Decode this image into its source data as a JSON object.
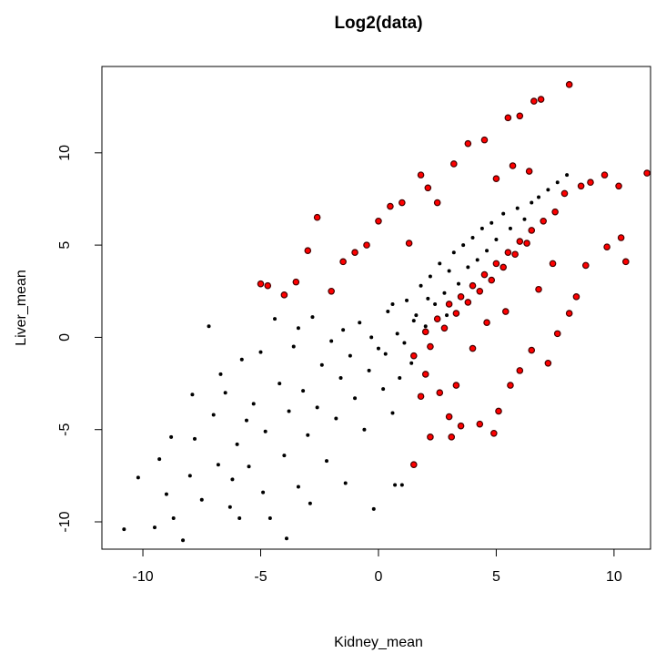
{
  "chart_data": {
    "type": "scatter",
    "title": "Log2(data)",
    "x_label": "Kidney_mean",
    "y_label": "Liver_mean",
    "xlim": [
      -11.74,
      11.55
    ],
    "ylim": [
      -11.48,
      14.68
    ],
    "xticks": [
      -10,
      -5,
      0,
      5,
      10
    ],
    "yticks": [
      -10,
      -5,
      0,
      5,
      10
    ],
    "series": [
      {
        "color": "#000000",
        "x": [
          -10.8,
          -10.2,
          -9.5,
          -9.3,
          -9.0,
          -8.7,
          -8.3,
          -8.0,
          -7.8,
          -7.5,
          -7.2,
          -7.0,
          -6.8,
          -6.5,
          -6.3,
          -6.0,
          -5.8,
          -5.5,
          -5.3,
          -5.0,
          -4.8,
          -4.6,
          -4.4,
          -4.2,
          -4.0,
          -3.8,
          -3.6,
          -3.4,
          -3.2,
          -3.0,
          -2.8,
          -2.6,
          -2.4,
          -2.2,
          -2.0,
          -1.8,
          -1.6,
          -1.4,
          -1.2,
          -1.0,
          -0.8,
          -0.6,
          -0.4,
          -0.2,
          0.0,
          0.2,
          0.4,
          0.6,
          0.8,
          1.0,
          1.2,
          1.4,
          1.6,
          1.8,
          2.0,
          2.2,
          2.4,
          2.6,
          2.8,
          3.0,
          3.2,
          3.4,
          3.6,
          3.8,
          4.0,
          4.2,
          4.4,
          4.6,
          4.8,
          5.0,
          5.3,
          5.6,
          5.9,
          6.2,
          6.5,
          6.8,
          7.2,
          7.6,
          8.0,
          -3.9,
          -5.6,
          -6.7,
          -7.9,
          -8.8,
          -2.9,
          -1.5,
          0.6,
          1.1,
          0.9,
          -0.3,
          0.3,
          1.5,
          2.1,
          2.9,
          0.7,
          -4.9,
          -6.2,
          -3.4,
          -5.9
        ],
        "y": [
          -10.4,
          -7.6,
          -10.3,
          -6.6,
          -8.5,
          -9.8,
          -11.0,
          -7.5,
          -5.5,
          -8.8,
          0.6,
          -4.2,
          -6.9,
          -3.0,
          -9.2,
          -5.8,
          -1.2,
          -7.0,
          -3.6,
          -0.8,
          -5.1,
          -9.8,
          1.0,
          -2.5,
          -6.4,
          -4.0,
          -0.5,
          -8.1,
          -2.9,
          -5.3,
          1.1,
          -3.8,
          -1.5,
          -6.7,
          -0.2,
          -4.4,
          -2.2,
          -7.9,
          -1.0,
          -3.3,
          0.8,
          -5.0,
          -1.8,
          -9.3,
          -0.6,
          -2.8,
          1.4,
          -4.1,
          0.2,
          -8.0,
          2.0,
          -1.4,
          1.2,
          2.8,
          0.6,
          3.3,
          1.8,
          4.0,
          2.4,
          3.6,
          4.6,
          2.9,
          5.0,
          3.8,
          5.4,
          4.2,
          5.9,
          4.7,
          6.2,
          5.3,
          6.7,
          5.9,
          7.0,
          6.4,
          7.3,
          7.6,
          8.0,
          8.4,
          8.8,
          -10.9,
          -4.5,
          -2.0,
          -3.1,
          -5.4,
          -9.0,
          0.4,
          1.8,
          -0.3,
          -2.2,
          0.0,
          -0.9,
          0.9,
          2.1,
          1.2,
          -8.0,
          -8.4,
          -7.7,
          0.5,
          -9.8
        ]
      },
      {
        "color": "#ff0000",
        "x": [
          1.5,
          2.0,
          2.5,
          3.0,
          3.5,
          4.0,
          4.5,
          5.0,
          5.5,
          6.0,
          6.5,
          7.0,
          7.5,
          2.2,
          2.8,
          3.3,
          3.8,
          4.3,
          4.8,
          5.3,
          5.8,
          6.3,
          -5.0,
          -4.7,
          -4.0,
          -3.5,
          -3.0,
          -2.6,
          -2.0,
          -1.5,
          -1.0,
          -0.5,
          0.0,
          0.5,
          1.0,
          1.3,
          1.8,
          2.1,
          2.5,
          3.2,
          3.8,
          4.5,
          5.0,
          5.5,
          5.7,
          6.0,
          6.4,
          6.6,
          6.9,
          8.1,
          7.9,
          8.6,
          9.0,
          9.6,
          10.2,
          11.4,
          10.5,
          10.3,
          9.7,
          8.8,
          8.4,
          8.1,
          7.6,
          7.2,
          6.5,
          6.0,
          5.6,
          5.1,
          4.9,
          4.3,
          3.5,
          3.0,
          2.6,
          2.2,
          1.8,
          1.5,
          2.0,
          3.3,
          4.0,
          4.6,
          5.4,
          6.8,
          7.4,
          3.1
        ],
        "y": [
          -1.0,
          0.3,
          1.0,
          1.8,
          2.2,
          2.8,
          3.4,
          4.0,
          4.6,
          5.2,
          5.8,
          6.3,
          6.8,
          -0.5,
          0.5,
          1.3,
          1.9,
          2.5,
          3.1,
          3.8,
          4.5,
          5.1,
          2.9,
          2.8,
          2.3,
          3.0,
          4.7,
          6.5,
          2.5,
          4.1,
          4.6,
          5.0,
          6.3,
          7.1,
          7.3,
          5.1,
          8.8,
          8.1,
          7.3,
          9.4,
          10.5,
          10.7,
          8.6,
          11.9,
          9.3,
          12.0,
          9.0,
          12.8,
          12.9,
          13.7,
          7.8,
          8.2,
          8.4,
          8.8,
          8.2,
          8.9,
          4.1,
          5.4,
          4.9,
          3.9,
          2.2,
          1.3,
          0.2,
          -1.4,
          -0.7,
          -1.8,
          -2.6,
          -4.0,
          -5.2,
          -4.7,
          -4.8,
          -4.3,
          -3.0,
          -5.4,
          -3.2,
          -6.9,
          -2.0,
          -2.6,
          -0.6,
          0.8,
          1.4,
          2.6,
          4.0,
          -5.4
        ]
      }
    ]
  }
}
